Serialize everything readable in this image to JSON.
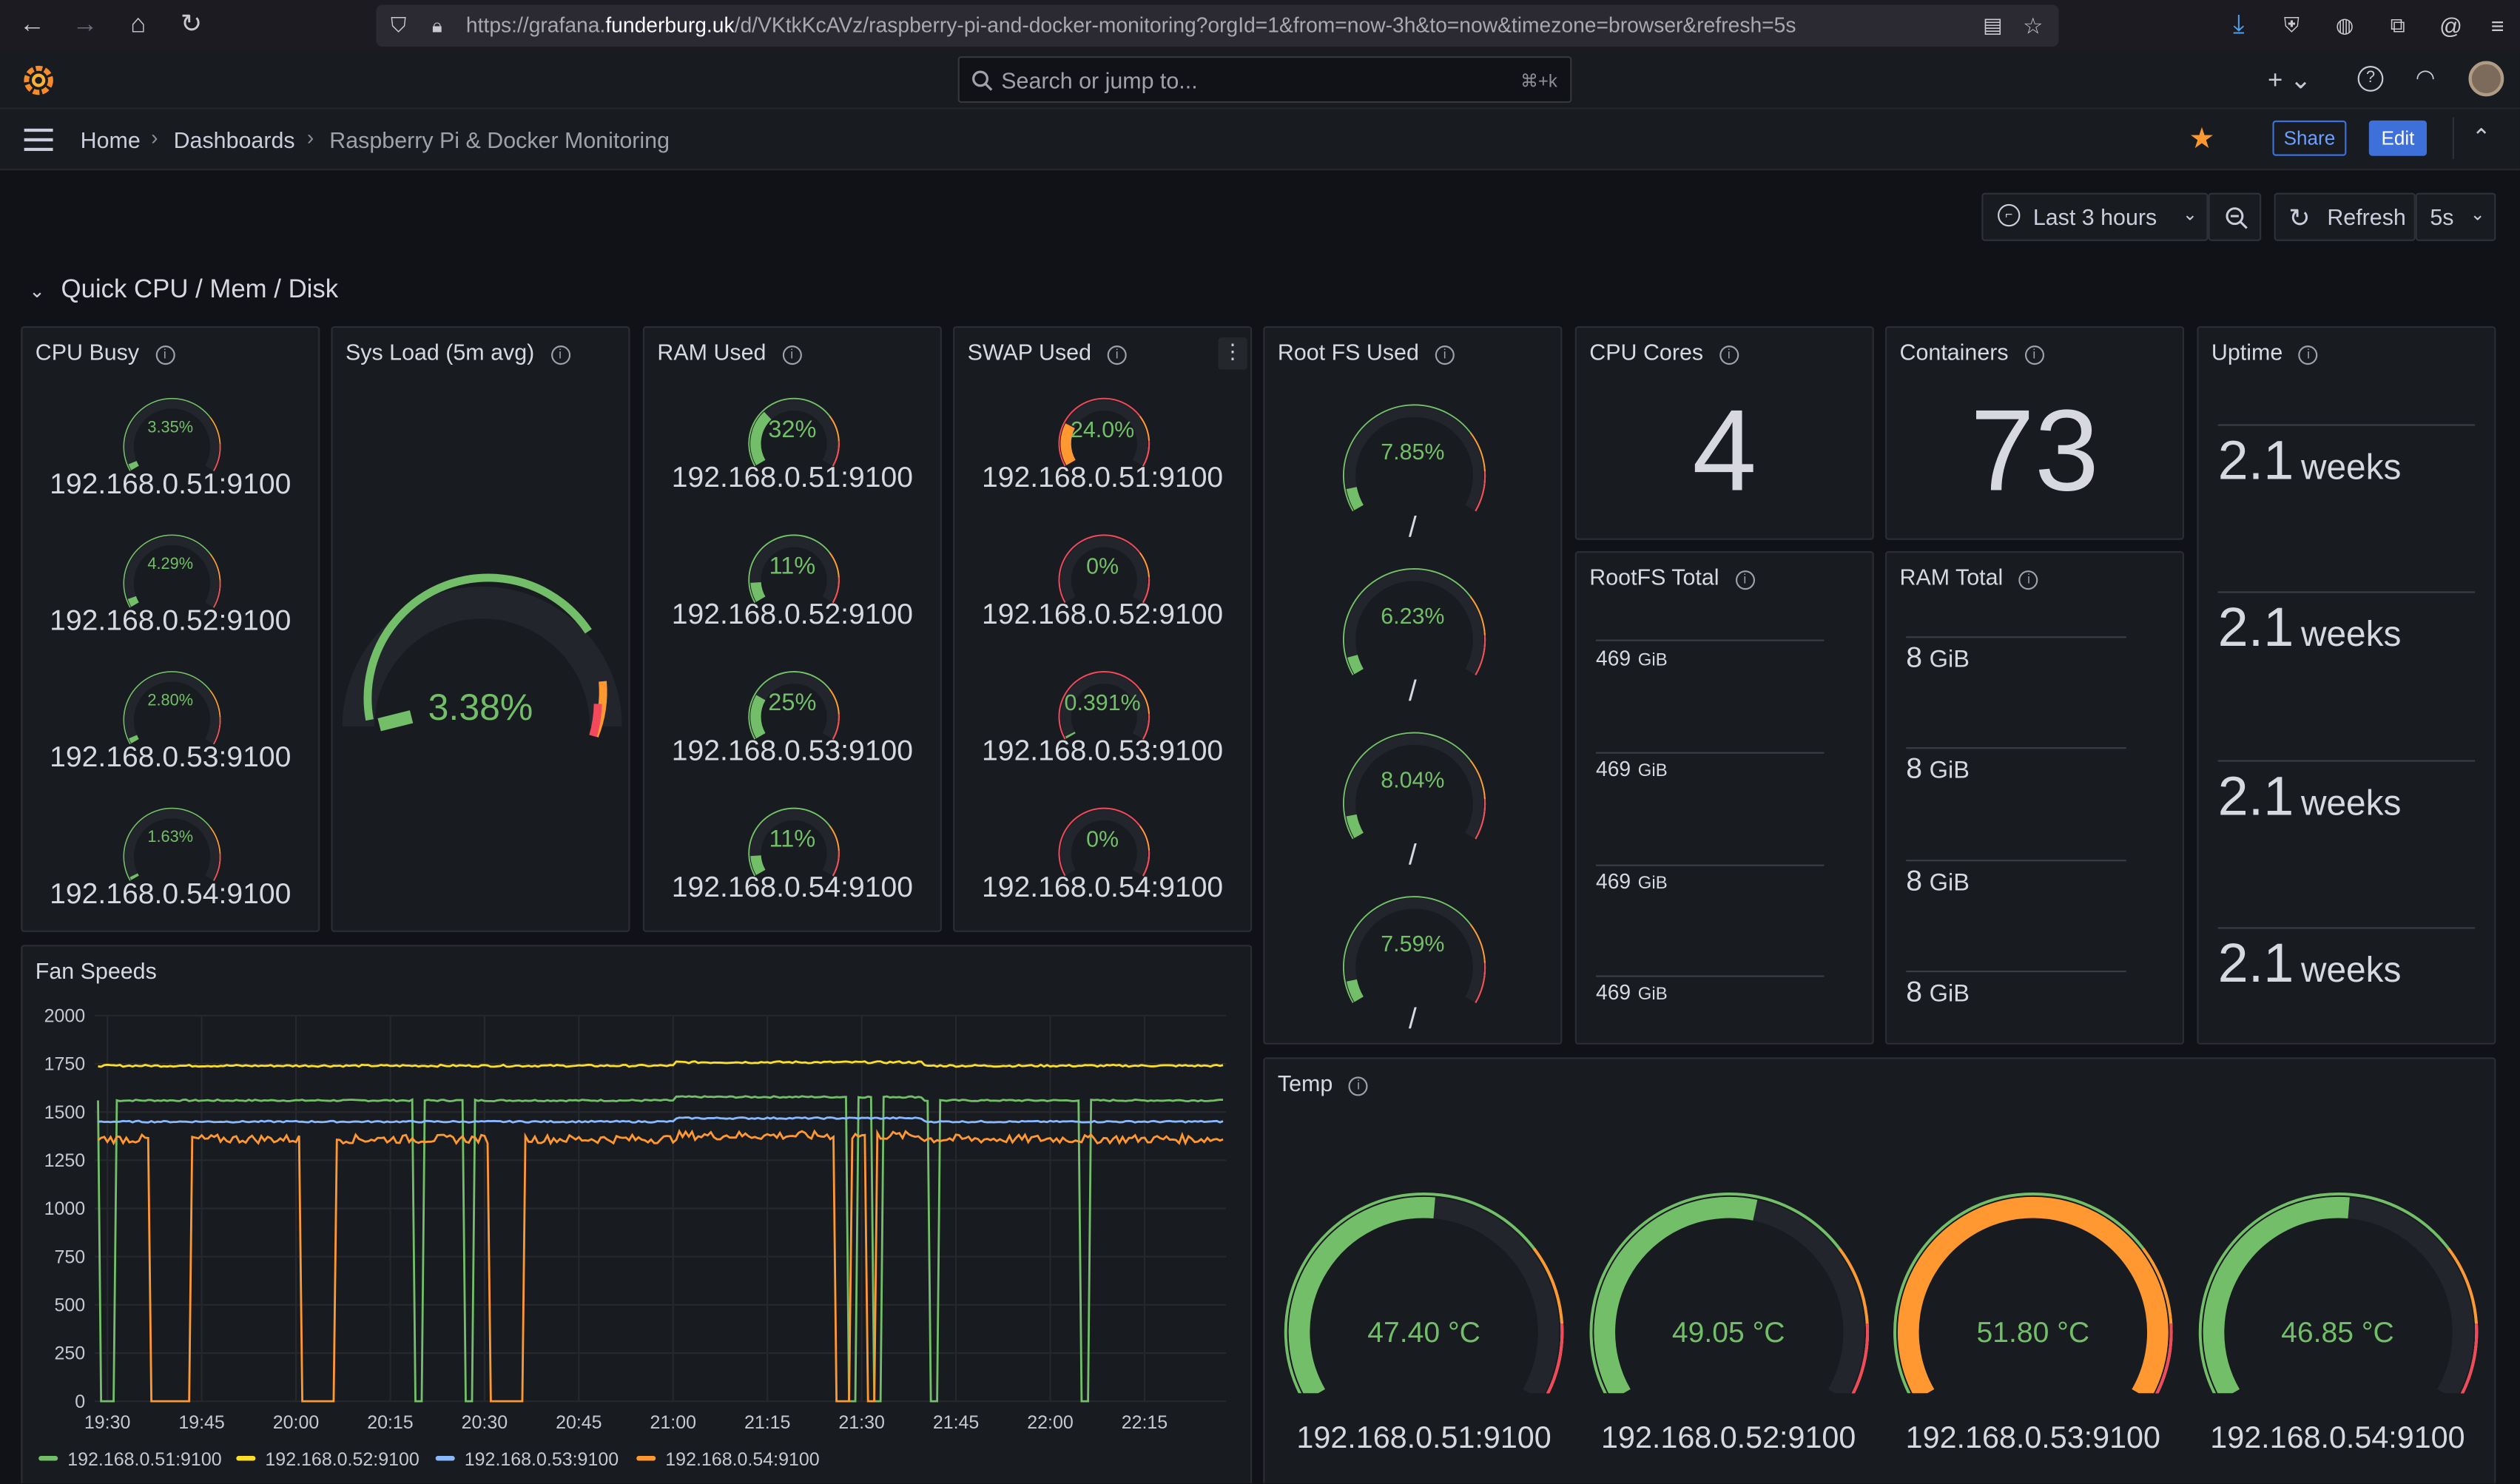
{
  "browser": {
    "url_prefix": "https://grafana.",
    "url_domain": "funderburg.uk",
    "url_suffix": "/d/VKtkKcAVz/raspberry-pi-and-docker-monitoring?orgId=1&from=now-3h&to=now&timezone=browser&refresh=5s"
  },
  "topnav": {
    "search_placeholder": "Search or jump to...",
    "search_shortcut": "⌘+k"
  },
  "breadcrumb": [
    "Home",
    "Dashboards",
    "Raspberry Pi & Docker Monitoring"
  ],
  "toolbar": {
    "share": "Share",
    "edit": "Edit",
    "time_range": "Last 3 hours",
    "refresh": "Refresh",
    "refresh_interval": "5s"
  },
  "row_title": "Quick CPU / Mem / Disk",
  "panels": {
    "cpu_busy": {
      "title": "CPU Busy",
      "items": [
        {
          "value": "3.35%",
          "pct": 3.35,
          "host": "192.168.0.51:9100"
        },
        {
          "value": "4.29%",
          "pct": 4.29,
          "host": "192.168.0.52:9100"
        },
        {
          "value": "2.80%",
          "pct": 2.8,
          "host": "192.168.0.53:9100"
        },
        {
          "value": "1.63%",
          "pct": 1.63,
          "host": "192.168.0.54:9100"
        }
      ]
    },
    "sys_load": {
      "title": "Sys Load (5m avg)",
      "value": "3.38%",
      "pct": 3.38
    },
    "ram_used": {
      "title": "RAM Used",
      "items": [
        {
          "value": "32%",
          "pct": 32,
          "host": "192.168.0.51:9100"
        },
        {
          "value": "11%",
          "pct": 11,
          "host": "192.168.0.52:9100"
        },
        {
          "value": "25%",
          "pct": 25,
          "host": "192.168.0.53:9100"
        },
        {
          "value": "11%",
          "pct": 11,
          "host": "192.168.0.54:9100"
        }
      ]
    },
    "swap_used": {
      "title": "SWAP Used",
      "items": [
        {
          "value": "24.0%",
          "pct": 24,
          "host": "192.168.0.51:9100"
        },
        {
          "value": "0%",
          "pct": 0,
          "host": "192.168.0.52:9100"
        },
        {
          "value": "0.391%",
          "pct": 0.391,
          "host": "192.168.0.53:9100"
        },
        {
          "value": "0%",
          "pct": 0,
          "host": "192.168.0.54:9100"
        }
      ]
    },
    "root_fs": {
      "title": "Root FS Used",
      "items": [
        {
          "value": "7.85%",
          "pct": 7.85,
          "mount": "/"
        },
        {
          "value": "6.23%",
          "pct": 6.23,
          "mount": "/"
        },
        {
          "value": "8.04%",
          "pct": 8.04,
          "mount": "/"
        },
        {
          "value": "7.59%",
          "pct": 7.59,
          "mount": "/"
        }
      ]
    },
    "cpu_cores": {
      "title": "CPU Cores",
      "value": "4"
    },
    "containers": {
      "title": "Containers",
      "value": "73"
    },
    "uptime": {
      "title": "Uptime",
      "items": [
        {
          "num": "2.1",
          "unit": "weeks"
        },
        {
          "num": "2.1",
          "unit": "weeks"
        },
        {
          "num": "2.1",
          "unit": "weeks"
        },
        {
          "num": "2.1",
          "unit": "weeks"
        }
      ]
    },
    "rootfs_total": {
      "title": "RootFS Total",
      "items": [
        {
          "num": "469",
          "unit": "GiB"
        },
        {
          "num": "469",
          "unit": "GiB"
        },
        {
          "num": "469",
          "unit": "GiB"
        },
        {
          "num": "469",
          "unit": "GiB"
        }
      ]
    },
    "ram_total": {
      "title": "RAM Total",
      "items": [
        {
          "num": "8",
          "unit": "GiB"
        },
        {
          "num": "8",
          "unit": "GiB"
        },
        {
          "num": "8",
          "unit": "GiB"
        },
        {
          "num": "8",
          "unit": "GiB"
        }
      ]
    },
    "fan_speeds": {
      "title": "Fan Speeds"
    },
    "temp": {
      "title": "Temp",
      "items": [
        {
          "value": "47.40 °C",
          "pct": 52,
          "host": "192.168.0.51:9100"
        },
        {
          "value": "49.05 °C",
          "pct": 55,
          "host": "192.168.0.52:9100"
        },
        {
          "value": "51.80 °C",
          "pct": 100,
          "host": "192.168.0.53:9100"
        },
        {
          "value": "46.85 °C",
          "pct": 52,
          "host": "192.168.0.54:9100"
        }
      ]
    }
  },
  "chart_data": {
    "type": "line",
    "title": "Fan Speeds",
    "x_ticks": [
      "19:30",
      "19:45",
      "20:00",
      "20:15",
      "20:30",
      "20:45",
      "21:00",
      "21:15",
      "21:30",
      "21:45",
      "22:00",
      "22:15"
    ],
    "y_ticks": [
      "2000",
      "1750",
      "1500",
      "1250",
      "1000",
      "750",
      "500",
      "250",
      "0"
    ],
    "ylim": [
      0,
      2000
    ],
    "x_range": [
      "19:28",
      "22:28"
    ],
    "legend_position": "bottom",
    "series": [
      {
        "name": "192.168.0.51:9100",
        "color": "#73bf69",
        "base": 1560,
        "drops": [
          [
            "19:29",
            "19:31"
          ],
          [
            "20:19",
            "20:20"
          ],
          [
            "20:27",
            "20:28"
          ],
          [
            "21:28",
            "21:29"
          ],
          [
            "21:32",
            "21:33"
          ],
          [
            "21:41",
            "21:42"
          ],
          [
            "22:05",
            "22:06"
          ]
        ]
      },
      {
        "name": "192.168.0.52:9100",
        "color": "#fade2a",
        "base": 1740,
        "drops": []
      },
      {
        "name": "192.168.0.53:9100",
        "color": "#8ab8ff",
        "base": 1450,
        "drops": []
      },
      {
        "name": "192.168.0.54:9100",
        "color": "#ff9830",
        "base": 1360,
        "drops": [
          [
            "19:37",
            "19:43"
          ],
          [
            "20:01",
            "20:06"
          ],
          [
            "20:31",
            "20:36"
          ],
          [
            "21:26",
            "21:28"
          ],
          [
            "21:31",
            "21:32"
          ]
        ]
      }
    ]
  },
  "colors": {
    "green": "#73bf69",
    "orange": "#ff9830",
    "red": "#f2495c",
    "blue_button": "#3d71d9",
    "star": "#ff9830"
  }
}
